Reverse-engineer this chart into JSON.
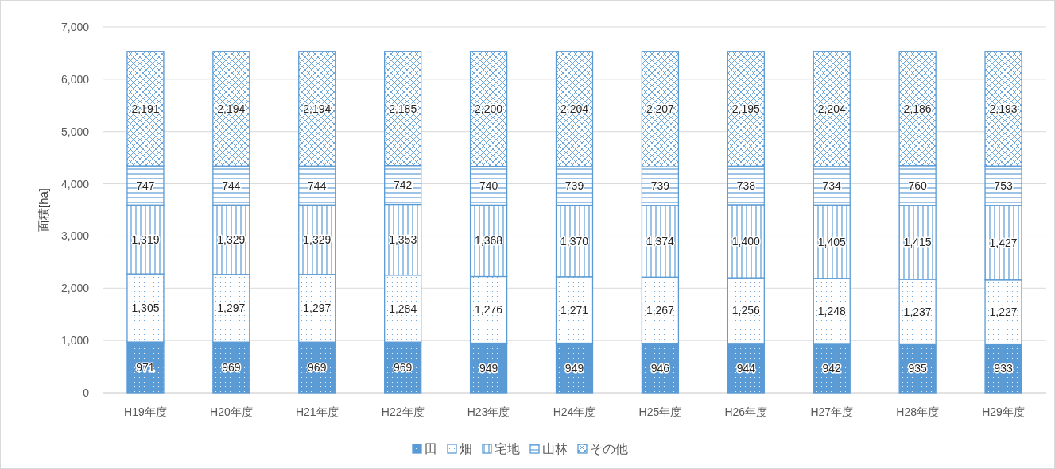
{
  "chart_data": {
    "type": "bar",
    "stacked": true,
    "ylabel": "面積[ha]",
    "categories": [
      "H19年度",
      "H20年度",
      "H21年度",
      "H22年度",
      "H23年度",
      "H24年度",
      "H25年度",
      "H26年度",
      "H27年度",
      "H28年度",
      "H29年度"
    ],
    "series": [
      {
        "name": "田",
        "color": "#5b9bd5",
        "values": [
          971,
          969,
          969,
          969,
          949,
          949,
          946,
          944,
          942,
          935,
          933
        ],
        "value_labels": [
          "971",
          "969",
          "969",
          "969",
          "949",
          "949",
          "946",
          "944",
          "942",
          "935",
          "933"
        ]
      },
      {
        "name": "畑",
        "color": "#5b9bd5",
        "values": [
          1305,
          1297,
          1297,
          1284,
          1276,
          1271,
          1267,
          1256,
          1248,
          1237,
          1227
        ],
        "value_labels": [
          "1,305",
          "1,297",
          "1,297",
          "1,284",
          "1,276",
          "1,271",
          "1,267",
          "1,256",
          "1,248",
          "1,237",
          "1,227"
        ]
      },
      {
        "name": "宅地",
        "color": "#5b9bd5",
        "values": [
          1319,
          1329,
          1329,
          1353,
          1368,
          1370,
          1374,
          1400,
          1405,
          1415,
          1427
        ],
        "value_labels": [
          "1,319",
          "1,329",
          "1,329",
          "1,353",
          "1,368",
          "1,370",
          "1,374",
          "1,400",
          "1,405",
          "1,415",
          "1,427"
        ]
      },
      {
        "name": "山林",
        "color": "#5b9bd5",
        "values": [
          747,
          744,
          744,
          742,
          740,
          739,
          739,
          738,
          734,
          760,
          753
        ],
        "value_labels": [
          "747",
          "744",
          "744",
          "742",
          "740",
          "739",
          "739",
          "738",
          "734",
          "760",
          "753"
        ]
      },
      {
        "name": "その他",
        "color": "#5b9bd5",
        "values": [
          2191,
          2194,
          2194,
          2185,
          2200,
          2204,
          2207,
          2195,
          2204,
          2186,
          2193
        ],
        "value_labels": [
          "2,191",
          "2,194",
          "2,194",
          "2,185",
          "2,200",
          "2,204",
          "2,207",
          "2,195",
          "2,204",
          "2,186",
          "2,193"
        ]
      }
    ],
    "ylim": [
      0,
      7000
    ],
    "yticks": [
      0,
      {
        "value": 1000,
        "label": "1,000"
      },
      {
        "value": 2000,
        "label": "2,000"
      },
      {
        "value": 3000,
        "label": "3,000"
      },
      {
        "value": 4000,
        "label": "4,000"
      },
      {
        "value": 5000,
        "label": "5,000"
      },
      {
        "value": 6000,
        "label": "6,000"
      },
      {
        "value": 7000,
        "label": "7,000"
      }
    ],
    "grid": "y",
    "legend": "bottom"
  }
}
